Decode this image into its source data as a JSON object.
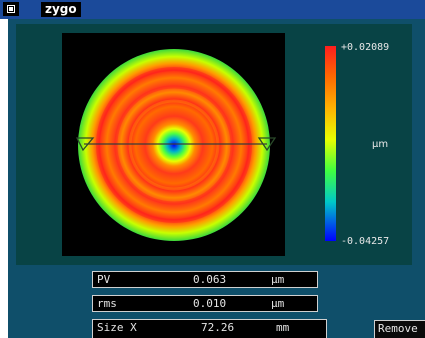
{
  "app": {
    "logo_text": "zygo"
  },
  "colorbar": {
    "max_label": "+0.02089",
    "unit": "µm",
    "min_label": "-0.04257"
  },
  "readouts": {
    "pv": {
      "label": "PV",
      "value": "0.063",
      "unit": "µm"
    },
    "rms": {
      "label": "rms",
      "value": "0.010",
      "unit": "µm"
    },
    "size_x": {
      "label": "Size X",
      "value": "72.26",
      "unit": "mm"
    }
  },
  "buttons": {
    "remove_label": "Remove"
  },
  "colors": {
    "window_bg": "#0f4f6a",
    "panel_bg": "#084345",
    "titlebar": "#1b4a9a"
  }
}
